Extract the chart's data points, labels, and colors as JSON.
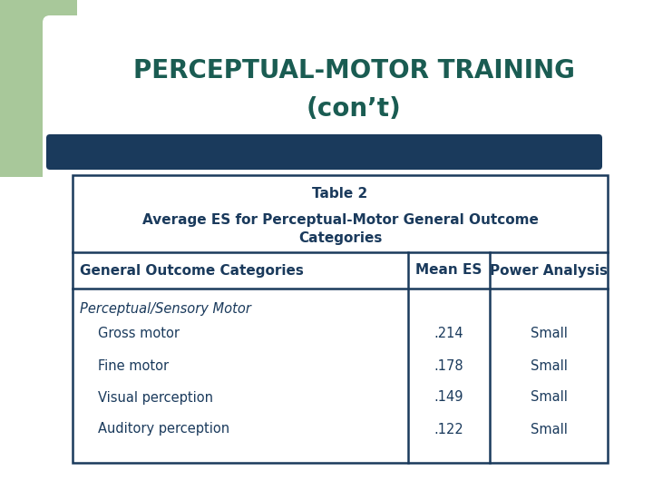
{
  "title_line1": "PERCEPTUAL-MOTOR TRAINING",
  "title_line2": "(con’t)",
  "title_color": "#1a5c52",
  "title_fontsize": 20,
  "background_color": "#ffffff",
  "green_rect_color": "#a8c89a",
  "blue_bar_color": "#1a3a5c",
  "table_border_color": "#1a3a5c",
  "table_header_caption_line1": "Table 2",
  "table_header_caption_line2": "Average ES for Perceptual-Motor General Outcome",
  "table_header_caption_line3": "Categories",
  "col_headers": [
    "General Outcome Categories",
    "Mean ES",
    "Power Analysis"
  ],
  "row_italic": "Perceptual/Sensory Motor",
  "rows": [
    [
      "Gross motor",
      ".214",
      "Small"
    ],
    [
      "Fine motor",
      ".178",
      "Small"
    ],
    [
      "Visual perception",
      ".149",
      "Small"
    ],
    [
      "Auditory perception",
      ".122",
      "Small"
    ]
  ],
  "text_color": "#1a3a5c",
  "table_fontsize": 10.5,
  "caption_fontsize": 11,
  "col_header_fontsize": 11
}
